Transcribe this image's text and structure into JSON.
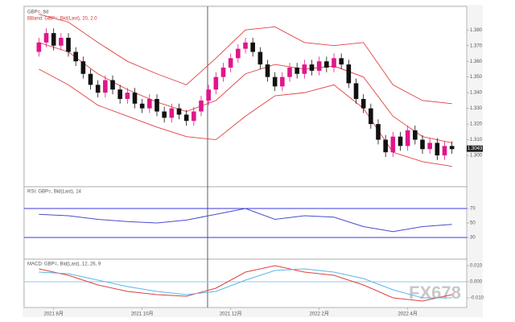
{
  "chart_data": [
    {
      "type": "candlestick",
      "title": "GBP=, 8d",
      "subtitle": "BBand: GBP=, Bid(Last), 20, 2.0",
      "open": [
        1.366,
        1.372,
        1.378,
        1.37,
        1.375,
        1.366,
        1.36,
        1.352,
        1.345,
        1.34,
        1.348,
        1.342,
        1.336,
        1.34,
        1.333,
        1.33,
        1.336,
        1.328,
        1.324,
        1.33,
        1.326,
        1.322,
        1.328,
        1.335,
        1.342,
        1.35,
        1.356,
        1.362,
        1.368,
        1.372,
        1.366,
        1.358,
        1.35,
        1.344,
        1.35,
        1.356,
        1.352,
        1.358,
        1.354,
        1.36,
        1.356,
        1.362,
        1.358,
        1.346,
        1.336,
        1.33,
        1.32,
        1.31,
        1.302,
        1.312,
        1.306,
        1.316,
        1.31,
        1.304,
        1.308,
        1.3,
        1.306
      ],
      "high": [
        1.375,
        1.381,
        1.381,
        1.378,
        1.378,
        1.369,
        1.363,
        1.355,
        1.348,
        1.351,
        1.351,
        1.345,
        1.343,
        1.343,
        1.336,
        1.339,
        1.339,
        1.331,
        1.333,
        1.333,
        1.329,
        1.331,
        1.338,
        1.345,
        1.353,
        1.359,
        1.365,
        1.371,
        1.375,
        1.375,
        1.369,
        1.361,
        1.353,
        1.353,
        1.359,
        1.359,
        1.361,
        1.361,
        1.363,
        1.363,
        1.365,
        1.365,
        1.361,
        1.349,
        1.339,
        1.333,
        1.323,
        1.313,
        1.315,
        1.315,
        1.319,
        1.319,
        1.313,
        1.311,
        1.311,
        1.309,
        1.309
      ],
      "low": [
        1.363,
        1.369,
        1.367,
        1.367,
        1.363,
        1.357,
        1.349,
        1.342,
        1.337,
        1.337,
        1.339,
        1.333,
        1.333,
        1.33,
        1.327,
        1.327,
        1.325,
        1.321,
        1.321,
        1.323,
        1.319,
        1.319,
        1.325,
        1.332,
        1.339,
        1.347,
        1.353,
        1.359,
        1.365,
        1.363,
        1.355,
        1.347,
        1.341,
        1.341,
        1.347,
        1.349,
        1.349,
        1.351,
        1.351,
        1.353,
        1.353,
        1.355,
        1.343,
        1.333,
        1.327,
        1.317,
        1.307,
        1.299,
        1.299,
        1.303,
        1.303,
        1.307,
        1.301,
        1.301,
        1.297,
        1.297,
        1.301
      ],
      "close": [
        1.372,
        1.378,
        1.37,
        1.375,
        1.366,
        1.36,
        1.352,
        1.345,
        1.34,
        1.348,
        1.342,
        1.336,
        1.34,
        1.333,
        1.33,
        1.336,
        1.328,
        1.324,
        1.33,
        1.326,
        1.322,
        1.328,
        1.335,
        1.342,
        1.35,
        1.356,
        1.362,
        1.368,
        1.372,
        1.366,
        1.358,
        1.35,
        1.344,
        1.35,
        1.356,
        1.352,
        1.358,
        1.354,
        1.36,
        1.356,
        1.362,
        1.358,
        1.346,
        1.336,
        1.33,
        1.32,
        1.31,
        1.302,
        1.312,
        1.306,
        1.316,
        1.31,
        1.304,
        1.308,
        1.3,
        1.306,
        1.304
      ],
      "up_color": "#e0168a",
      "down_color": "#111111",
      "band_x": [
        0,
        4,
        8,
        12,
        16,
        20,
        24,
        28,
        32,
        36,
        40,
        44,
        48,
        52,
        56
      ],
      "bands": [
        {
          "color": "#e04040",
          "values": [
            1.39,
            1.385,
            1.372,
            1.36,
            1.352,
            1.345,
            1.362,
            1.38,
            1.382,
            1.372,
            1.37,
            1.372,
            1.345,
            1.335,
            1.333
          ]
        },
        {
          "color": "#e04040",
          "values": [
            1.372,
            1.366,
            1.352,
            1.342,
            1.334,
            1.328,
            1.335,
            1.352,
            1.358,
            1.355,
            1.357,
            1.35,
            1.325,
            1.312,
            1.308
          ]
        },
        {
          "color": "#e04040",
          "values": [
            1.355,
            1.345,
            1.332,
            1.325,
            1.318,
            1.312,
            1.31,
            1.325,
            1.338,
            1.34,
            1.345,
            1.33,
            1.302,
            1.296,
            1.293
          ]
        }
      ],
      "last_price": 1.3043,
      "xlim": [
        -2,
        58
      ],
      "ylim": [
        1.28,
        1.395
      ],
      "yticks": [
        {
          "value": 1.3,
          "label": "1.300"
        },
        {
          "value": 1.31,
          "label": "1.310"
        },
        {
          "value": 1.32,
          "label": "1.320"
        },
        {
          "value": 1.33,
          "label": "1.330"
        },
        {
          "value": 1.34,
          "label": "1.340"
        },
        {
          "value": 1.35,
          "label": "1.350"
        },
        {
          "value": 1.36,
          "label": "1.360"
        },
        {
          "value": 1.37,
          "label": "1.370"
        },
        {
          "value": 1.38,
          "label": "1.380"
        }
      ],
      "xticks": [
        {
          "value": 2,
          "label": "2021 8月"
        },
        {
          "value": 14,
          "label": "2021 10月"
        },
        {
          "value": 26,
          "label": "2021 12月"
        },
        {
          "value": 38,
          "label": "2022 2月"
        },
        {
          "value": 50,
          "label": "2022 4月"
        }
      ]
    },
    {
      "type": "line",
      "title": "RSI: GBP=, Bid(Last), 14",
      "x": [
        0,
        4,
        8,
        12,
        16,
        20,
        24,
        28,
        32,
        36,
        40,
        44,
        48,
        52,
        56
      ],
      "series": [
        {
          "color": "#4a4ad0",
          "values": [
            62,
            60,
            55,
            52,
            50,
            54,
            62,
            70,
            55,
            60,
            58,
            45,
            38,
            45,
            48
          ]
        }
      ],
      "levels": [
        30,
        70
      ],
      "level_color": "#3a3ae0",
      "xlim": [
        -2,
        58
      ],
      "ylim": [
        0,
        100
      ],
      "yticks": [
        30,
        50,
        70
      ]
    },
    {
      "type": "line",
      "title": "MACD: GBP=, Bid(Last), 12, 26, 9",
      "x": [
        0,
        4,
        8,
        12,
        16,
        20,
        24,
        28,
        32,
        36,
        40,
        44,
        48,
        52,
        56
      ],
      "series": [
        {
          "color": "#e04040",
          "values": [
            0.008,
            0.004,
            -0.002,
            -0.006,
            -0.008,
            -0.009,
            -0.004,
            0.006,
            0.01,
            0.006,
            0.004,
            -0.002,
            -0.01,
            -0.012,
            -0.008
          ]
        },
        {
          "color": "#5ab8e8",
          "values": [
            0.006,
            0.005,
            0.001,
            -0.003,
            -0.006,
            -0.008,
            -0.006,
            0.001,
            0.007,
            0.008,
            0.006,
            0.002,
            -0.005,
            -0.01,
            -0.01
          ]
        }
      ],
      "levels": [
        0
      ],
      "level_color": "#8fc8ef",
      "xlim": [
        -2,
        58
      ],
      "ylim": [
        -0.016,
        0.014
      ],
      "yticks": [
        {
          "value": -0.01,
          "label": "-0.010"
        },
        {
          "value": 0,
          "label": "0.000"
        },
        {
          "value": 0.01,
          "label": "0.010"
        }
      ]
    },
    {
      "type": "watermark",
      "title": "FX678"
    }
  ]
}
